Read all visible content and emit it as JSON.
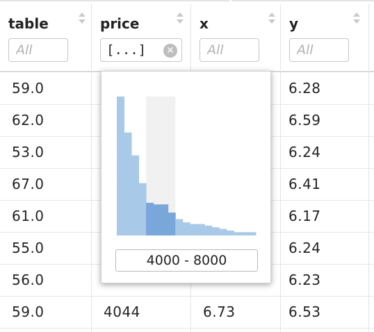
{
  "columns": [
    {
      "label": "table",
      "filter_placeholder": "All"
    },
    {
      "label": "price",
      "filter_value": "[...]"
    },
    {
      "label": "x",
      "filter_placeholder": "All"
    },
    {
      "label": "y",
      "filter_placeholder": "All"
    }
  ],
  "rows": [
    [
      "59.0",
      "",
      "",
      "6.28"
    ],
    [
      "62.0",
      "",
      "",
      "6.59"
    ],
    [
      "53.0",
      "",
      "",
      "6.24"
    ],
    [
      "67.0",
      "",
      "",
      "6.41"
    ],
    [
      "61.0",
      "",
      "",
      "6.17"
    ],
    [
      "55.0",
      "",
      "",
      "6.24"
    ],
    [
      "56.0",
      "",
      "",
      "6.23"
    ],
    [
      "59.0",
      "4044",
      "6.73",
      "6.53"
    ]
  ],
  "price_filter": {
    "range_label": "4000 - 8000",
    "selected_from": 4000,
    "selected_to": 8000,
    "histogram_relative_counts": [
      0.85,
      0.63,
      0.49,
      0.32,
      0.2,
      0.19,
      0.19,
      0.14,
      0.1,
      0.08,
      0.07,
      0.07,
      0.06,
      0.05,
      0.04,
      0.03,
      0.02,
      0.02,
      0.02
    ],
    "colors": {
      "bar": "#a8c9e8",
      "bar_selected": "#7aa7d9",
      "band": "#f1f1f1"
    }
  }
}
